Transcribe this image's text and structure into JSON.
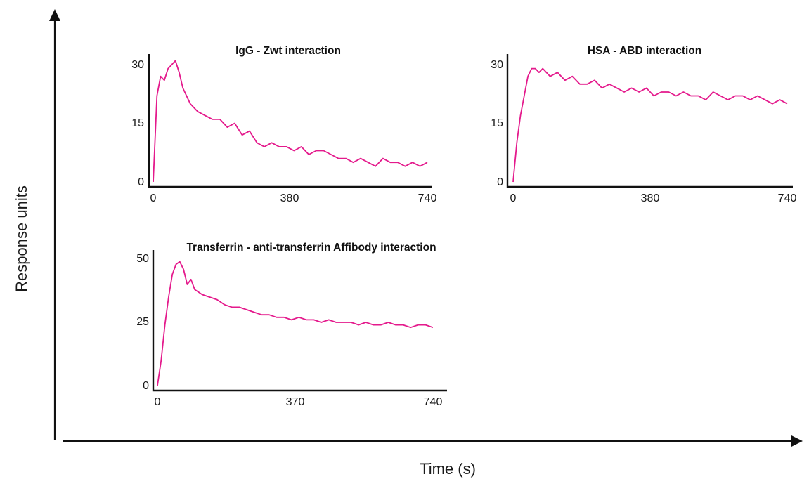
{
  "figure": {
    "xlabel": "Time (s)",
    "ylabel": "Response units",
    "line_color": "#e41a8c"
  },
  "chart_data": [
    {
      "type": "line",
      "title": "IgG - Zwt interaction",
      "xlim": [
        0,
        740
      ],
      "ylim": [
        0,
        30
      ],
      "xticks": [
        "0",
        "380",
        "740"
      ],
      "yticks": [
        "0",
        "15",
        "30"
      ],
      "series": [
        {
          "x": [
            0,
            10,
            20,
            30,
            40,
            50,
            60,
            70,
            80,
            90,
            100,
            120,
            140,
            160,
            180,
            200,
            220,
            240,
            260,
            280,
            300,
            320,
            340,
            360,
            380,
            400,
            420,
            440,
            460,
            480,
            500,
            520,
            540,
            560,
            580,
            600,
            620,
            640,
            660,
            680,
            700,
            720,
            740
          ],
          "values": [
            0,
            22,
            27,
            26,
            29,
            30,
            31,
            28,
            24,
            22,
            20,
            18,
            17,
            16,
            16,
            14,
            15,
            12,
            13,
            10,
            9,
            10,
            9,
            9,
            8,
            9,
            7,
            8,
            8,
            7,
            6,
            6,
            5,
            6,
            5,
            4,
            6,
            5,
            5,
            4,
            5,
            4,
            5
          ]
        }
      ]
    },
    {
      "type": "line",
      "title": "HSA - ABD interaction",
      "xlim": [
        0,
        740
      ],
      "ylim": [
        0,
        30
      ],
      "xticks": [
        "0",
        "380",
        "740"
      ],
      "yticks": [
        "0",
        "15",
        "30"
      ],
      "series": [
        {
          "x": [
            0,
            10,
            20,
            30,
            40,
            50,
            60,
            70,
            80,
            90,
            100,
            120,
            140,
            160,
            180,
            200,
            220,
            240,
            260,
            280,
            300,
            320,
            340,
            360,
            380,
            400,
            420,
            440,
            460,
            480,
            500,
            520,
            540,
            560,
            580,
            600,
            620,
            640,
            660,
            680,
            700,
            720,
            740
          ],
          "values": [
            0,
            10,
            17,
            22,
            27,
            29,
            29,
            28,
            29,
            28,
            27,
            28,
            26,
            27,
            25,
            25,
            26,
            24,
            25,
            24,
            23,
            24,
            23,
            24,
            22,
            23,
            23,
            22,
            23,
            22,
            22,
            21,
            23,
            22,
            21,
            22,
            22,
            21,
            22,
            21,
            20,
            21,
            20
          ]
        }
      ]
    },
    {
      "type": "line",
      "title": "Transferrin - anti-transferrin Affibody interaction",
      "xlim": [
        0,
        740
      ],
      "ylim": [
        0,
        50
      ],
      "xticks": [
        "0",
        "370",
        "740"
      ],
      "yticks": [
        "0",
        "25",
        "50"
      ],
      "series": [
        {
          "x": [
            0,
            10,
            20,
            30,
            40,
            50,
            60,
            70,
            80,
            90,
            100,
            120,
            140,
            160,
            180,
            200,
            220,
            240,
            260,
            280,
            300,
            320,
            340,
            360,
            380,
            400,
            420,
            440,
            460,
            480,
            500,
            520,
            540,
            560,
            580,
            600,
            620,
            640,
            660,
            680,
            700,
            720,
            740
          ],
          "values": [
            0,
            10,
            24,
            35,
            44,
            48,
            49,
            46,
            40,
            42,
            38,
            36,
            35,
            34,
            32,
            31,
            31,
            30,
            29,
            28,
            28,
            27,
            27,
            26,
            27,
            26,
            26,
            25,
            26,
            25,
            25,
            25,
            24,
            25,
            24,
            24,
            25,
            24,
            24,
            23,
            24,
            24,
            23
          ]
        }
      ]
    }
  ]
}
